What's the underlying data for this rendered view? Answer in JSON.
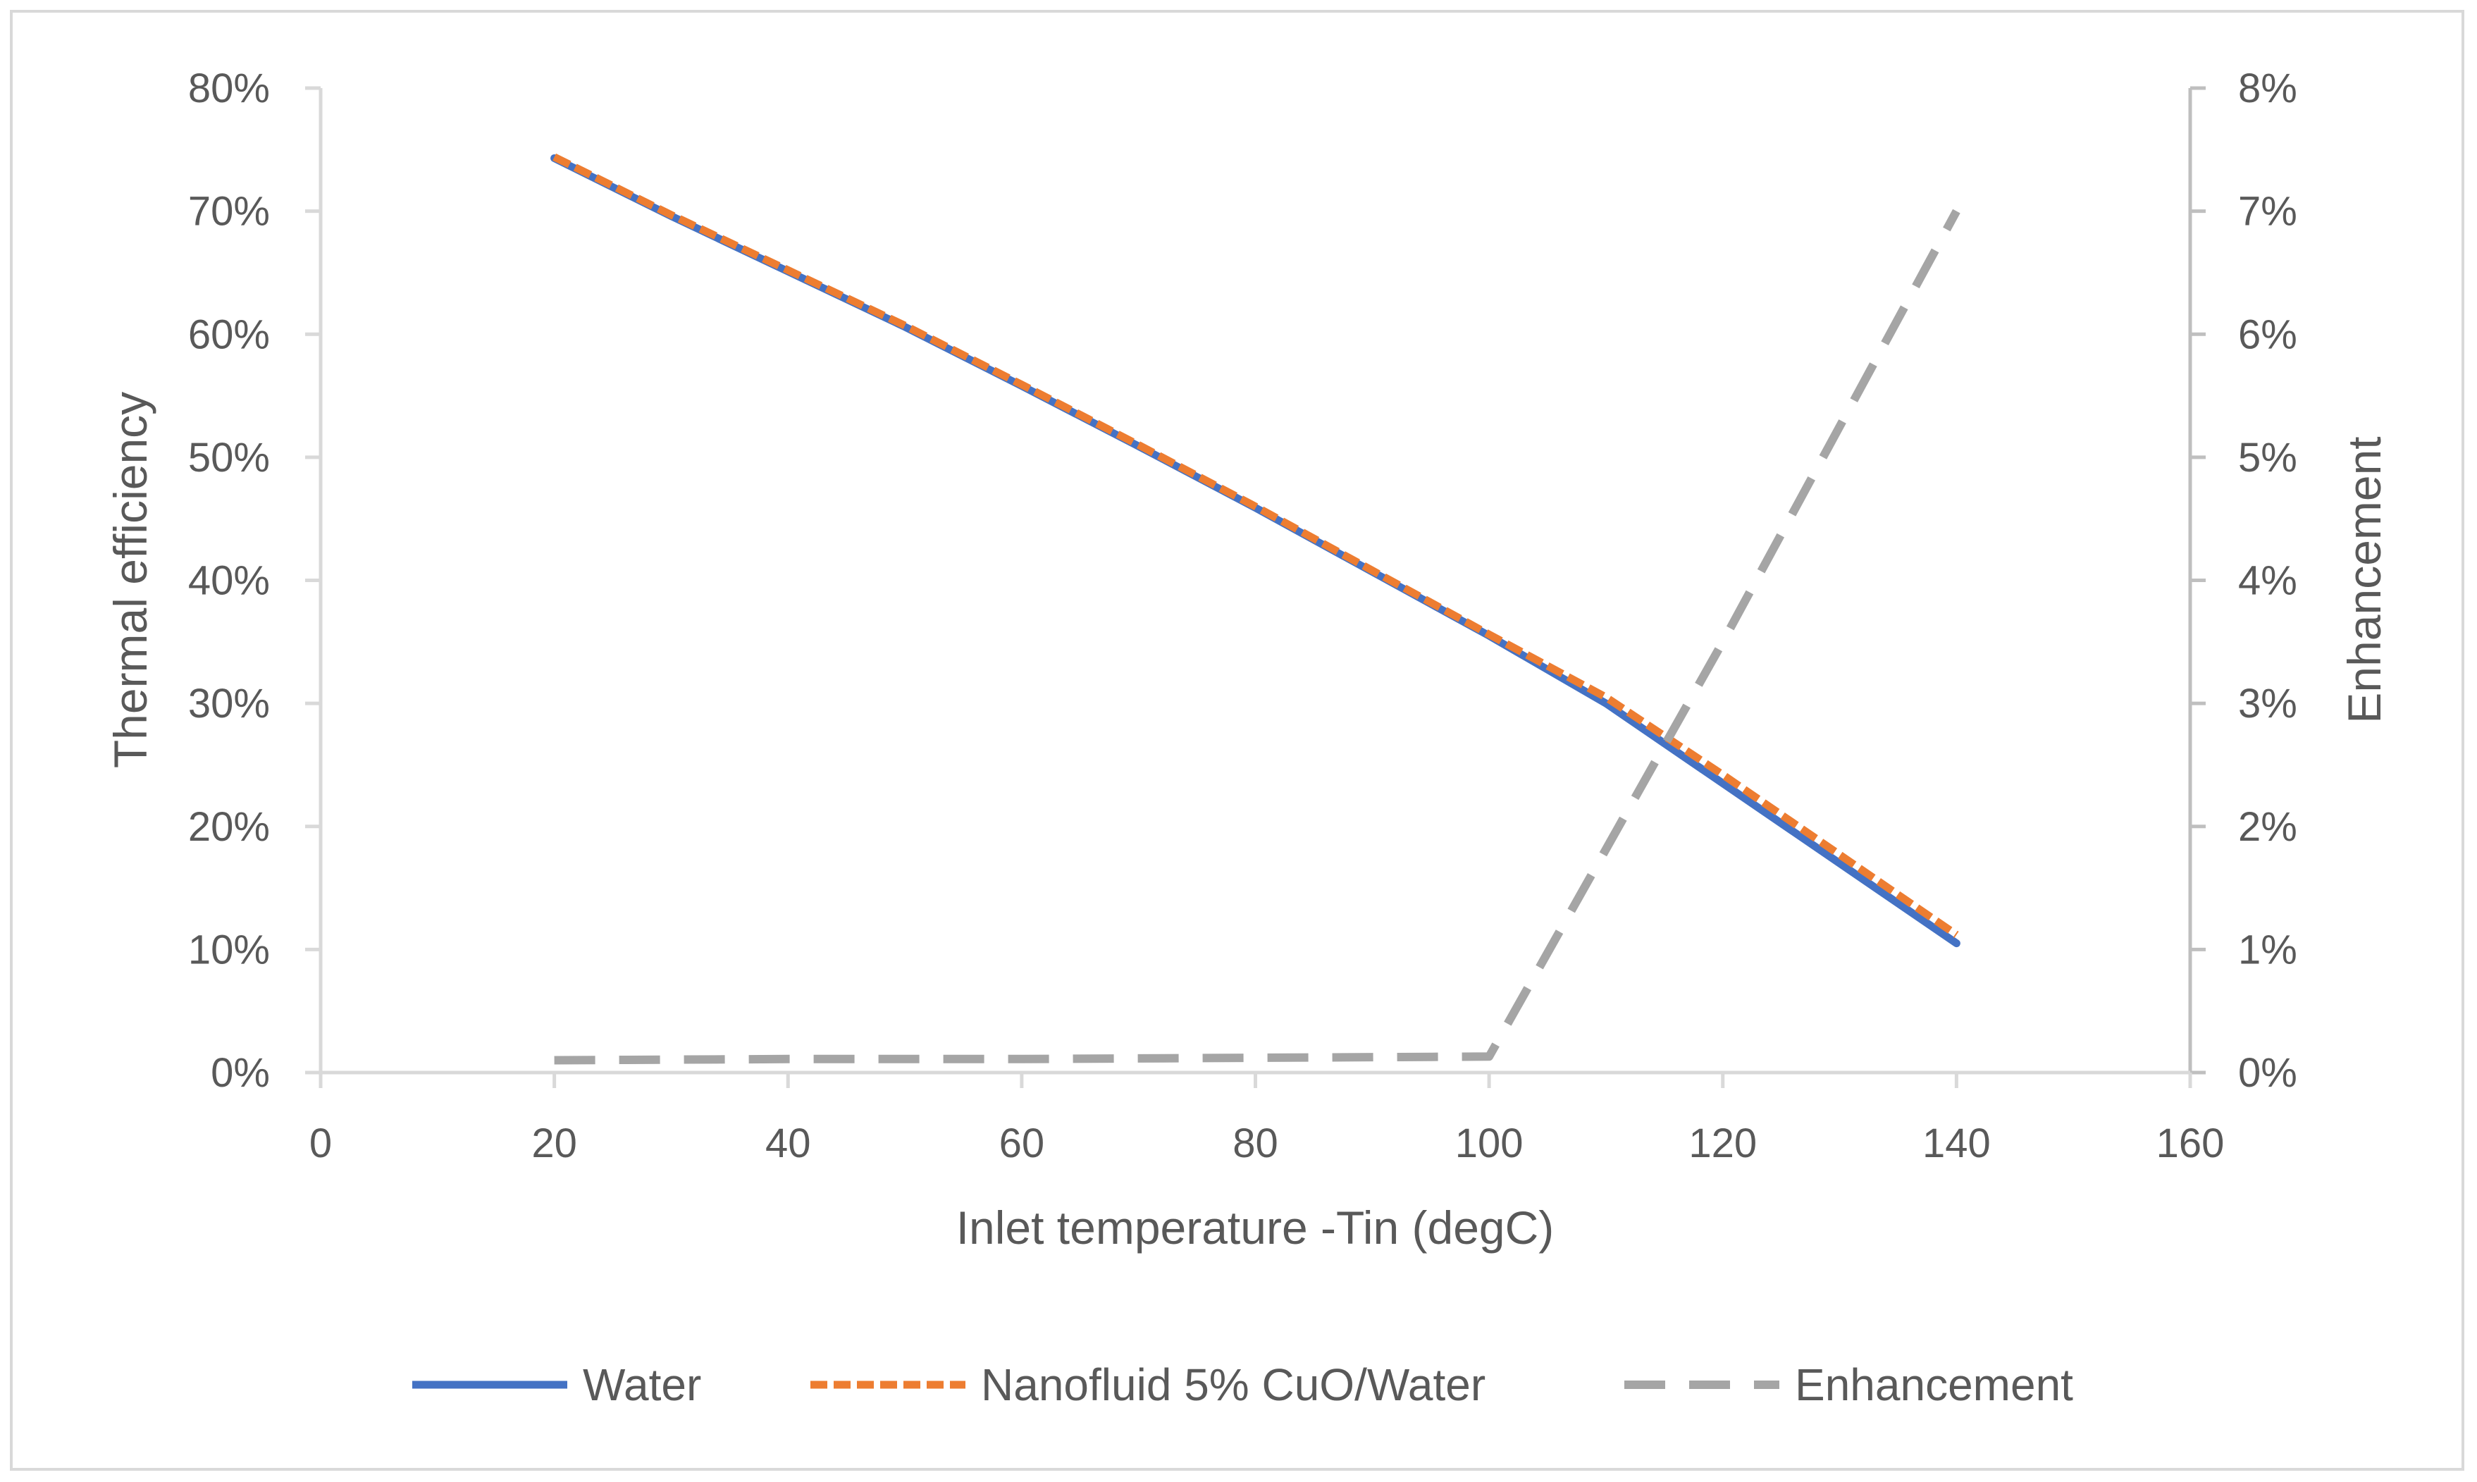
{
  "chart_data": {
    "type": "line",
    "title": "",
    "xlabel": "Inlet temperature -Tin (degC)",
    "ylabel": "Thermal efficiency",
    "y2label": "Enhancement",
    "xlim": [
      0,
      160
    ],
    "x_ticks": [
      "0",
      "20",
      "40",
      "60",
      "80",
      "100",
      "120",
      "140",
      "160"
    ],
    "ylim": [
      0,
      0.8
    ],
    "y_ticks": [
      "0%",
      "10%",
      "20%",
      "30%",
      "40%",
      "50%",
      "60%",
      "70%",
      "80%"
    ],
    "y2lim": [
      0,
      0.08
    ],
    "y2_ticks": [
      "0%",
      "1%",
      "2%",
      "3%",
      "4%",
      "5%",
      "6%",
      "7%",
      "8%"
    ],
    "grid": false,
    "legend_position": "bottom",
    "series": [
      {
        "name": "Water",
        "axis": "left",
        "style": "solid",
        "color": "#4472c4",
        "x": [
          20,
          30,
          40,
          50,
          60,
          70,
          80,
          90,
          100,
          110,
          120,
          130,
          140
        ],
        "values": [
          0.743,
          0.696,
          0.651,
          0.606,
          0.558,
          0.509,
          0.459,
          0.407,
          0.355,
          0.3,
          0.235,
          0.17,
          0.105
        ]
      },
      {
        "name": "Nanofluid 5% CuO/Water",
        "axis": "left",
        "style": "dotted",
        "color": "#ed7d31",
        "x": [
          20,
          30,
          40,
          50,
          60,
          70,
          80,
          90,
          100,
          110,
          120,
          130,
          140
        ],
        "values": [
          0.744,
          0.697,
          0.652,
          0.607,
          0.559,
          0.51,
          0.46,
          0.408,
          0.356,
          0.305,
          0.242,
          0.177,
          0.112
        ]
      },
      {
        "name": "Enhancement",
        "axis": "right",
        "style": "dashed",
        "color": "#a5a5a5",
        "x": [
          20,
          40,
          60,
          80,
          100,
          120,
          140
        ],
        "values": [
          0.001,
          0.0011,
          0.0011,
          0.0012,
          0.0013,
          0.035,
          0.07
        ]
      }
    ]
  }
}
